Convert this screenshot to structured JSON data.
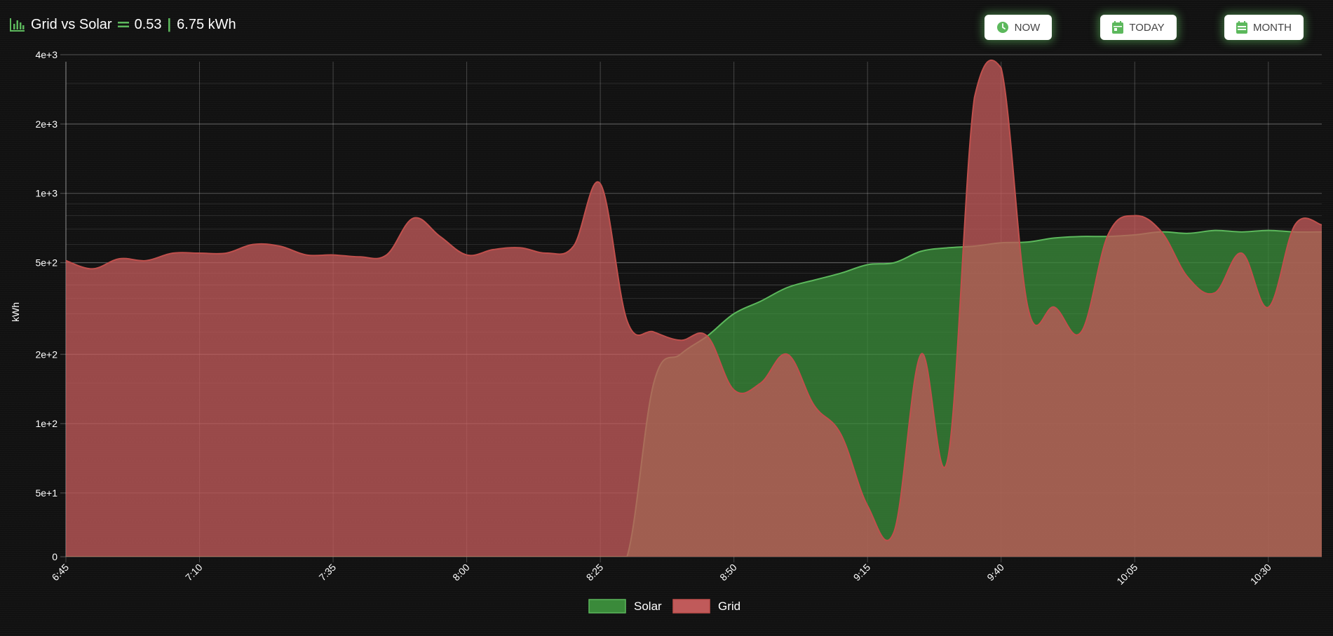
{
  "header": {
    "title": "Grid vs Solar",
    "ratio": "0.53",
    "separator": "|",
    "total": "6.75 kWh",
    "icon": "bar-chart-icon",
    "equals_icon": "equals-icon"
  },
  "buttons": [
    {
      "id": "now",
      "label": "NOW",
      "icon": "clock-icon"
    },
    {
      "id": "today",
      "label": "TODAY",
      "icon": "calendar-icon"
    },
    {
      "id": "month",
      "label": "MONTH",
      "icon": "calendar-icon"
    }
  ],
  "colors": {
    "accent": "#5cb85c",
    "solar_fill": "#3a8a3a",
    "solar_line": "#5cb85c",
    "grid_fill": "#c05a5a",
    "grid_line": "#c0504d",
    "overlap": "#6f8a4a"
  },
  "chart_data": {
    "type": "area",
    "title": "",
    "xlabel": "",
    "ylabel": "kWh",
    "y_scale": "log",
    "ylim": [
      0,
      4000
    ],
    "y_ticks": [
      "0",
      "5e+1",
      "1e+2",
      "2e+2",
      "5e+2",
      "1e+3",
      "2e+3",
      "4e+3"
    ],
    "x_ticks": [
      "6:45",
      "7:10",
      "7:35",
      "8:00",
      "8:25",
      "8:50",
      "9:15",
      "9:40",
      "10:05",
      "10:30"
    ],
    "grid": true,
    "legend_position": "bottom",
    "x": [
      "6:45",
      "6:50",
      "6:55",
      "7:00",
      "7:05",
      "7:10",
      "7:15",
      "7:20",
      "7:25",
      "7:30",
      "7:35",
      "7:40",
      "7:45",
      "7:50",
      "7:55",
      "8:00",
      "8:05",
      "8:10",
      "8:15",
      "8:20",
      "8:25",
      "8:30",
      "8:35",
      "8:40",
      "8:45",
      "8:50",
      "8:55",
      "9:00",
      "9:05",
      "9:10",
      "9:15",
      "9:20",
      "9:25",
      "9:30",
      "9:35",
      "9:40",
      "9:45",
      "9:50",
      "9:55",
      "10:00",
      "10:05",
      "10:10",
      "10:15",
      "10:20",
      "10:25",
      "10:30",
      "10:35",
      "10:40"
    ],
    "series": [
      {
        "name": "Solar",
        "values": [
          0,
          0,
          0,
          0,
          0,
          0,
          0,
          0,
          0,
          0,
          0,
          0,
          0,
          0,
          0,
          0,
          0,
          0,
          0,
          0,
          0,
          0,
          150,
          200,
          240,
          300,
          340,
          390,
          420,
          450,
          490,
          500,
          560,
          580,
          590,
          610,
          615,
          640,
          650,
          650,
          660,
          680,
          670,
          690,
          680,
          690,
          680,
          680
        ]
      },
      {
        "name": "Grid",
        "values": [
          510,
          470,
          520,
          510,
          550,
          550,
          550,
          600,
          590,
          540,
          540,
          530,
          540,
          780,
          650,
          540,
          570,
          580,
          550,
          590,
          1100,
          280,
          250,
          230,
          240,
          140,
          150,
          200,
          120,
          90,
          40,
          20,
          200,
          70,
          2600,
          3500,
          320,
          320,
          250,
          660,
          800,
          680,
          430,
          370,
          550,
          320,
          730,
          730
        ]
      }
    ]
  }
}
